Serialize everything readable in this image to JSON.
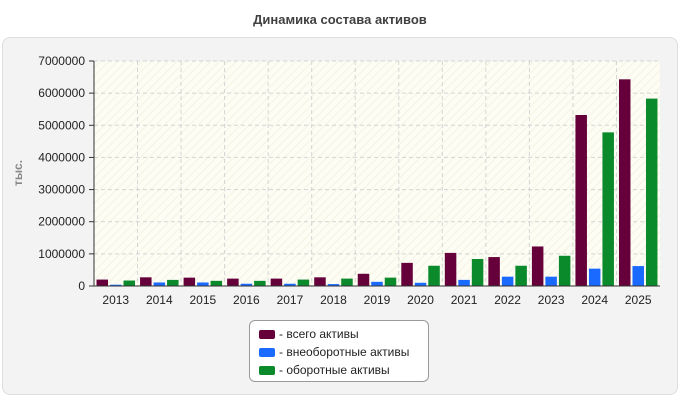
{
  "chart_data": {
    "type": "bar",
    "title": "Динамика состава активов",
    "ylabel": "тыс.",
    "xlabel": "",
    "ylim": [
      0,
      7000000
    ],
    "yticks": [
      0,
      1000000,
      2000000,
      3000000,
      4000000,
      5000000,
      6000000,
      7000000
    ],
    "categories": [
      "2013",
      "2014",
      "2015",
      "2016",
      "2017",
      "2018",
      "2019",
      "2020",
      "2021",
      "2022",
      "2023",
      "2024",
      "2025"
    ],
    "series": [
      {
        "name": "- всего активы",
        "color": "#66003a",
        "values": [
          200000,
          270000,
          260000,
          230000,
          230000,
          270000,
          380000,
          720000,
          1030000,
          900000,
          1230000,
          5320000,
          6430000
        ]
      },
      {
        "name": "- внеоборотные активы",
        "color": "#1a6aff",
        "values": [
          40000,
          110000,
          110000,
          70000,
          70000,
          60000,
          130000,
          100000,
          190000,
          290000,
          290000,
          540000,
          620000
        ]
      },
      {
        "name": "- оборотные активы",
        "color": "#0a8a2a",
        "values": [
          170000,
          190000,
          160000,
          160000,
          200000,
          230000,
          260000,
          630000,
          840000,
          630000,
          940000,
          4780000,
          5830000
        ]
      }
    ],
    "grid": true,
    "legend_position": "bottom-center"
  }
}
